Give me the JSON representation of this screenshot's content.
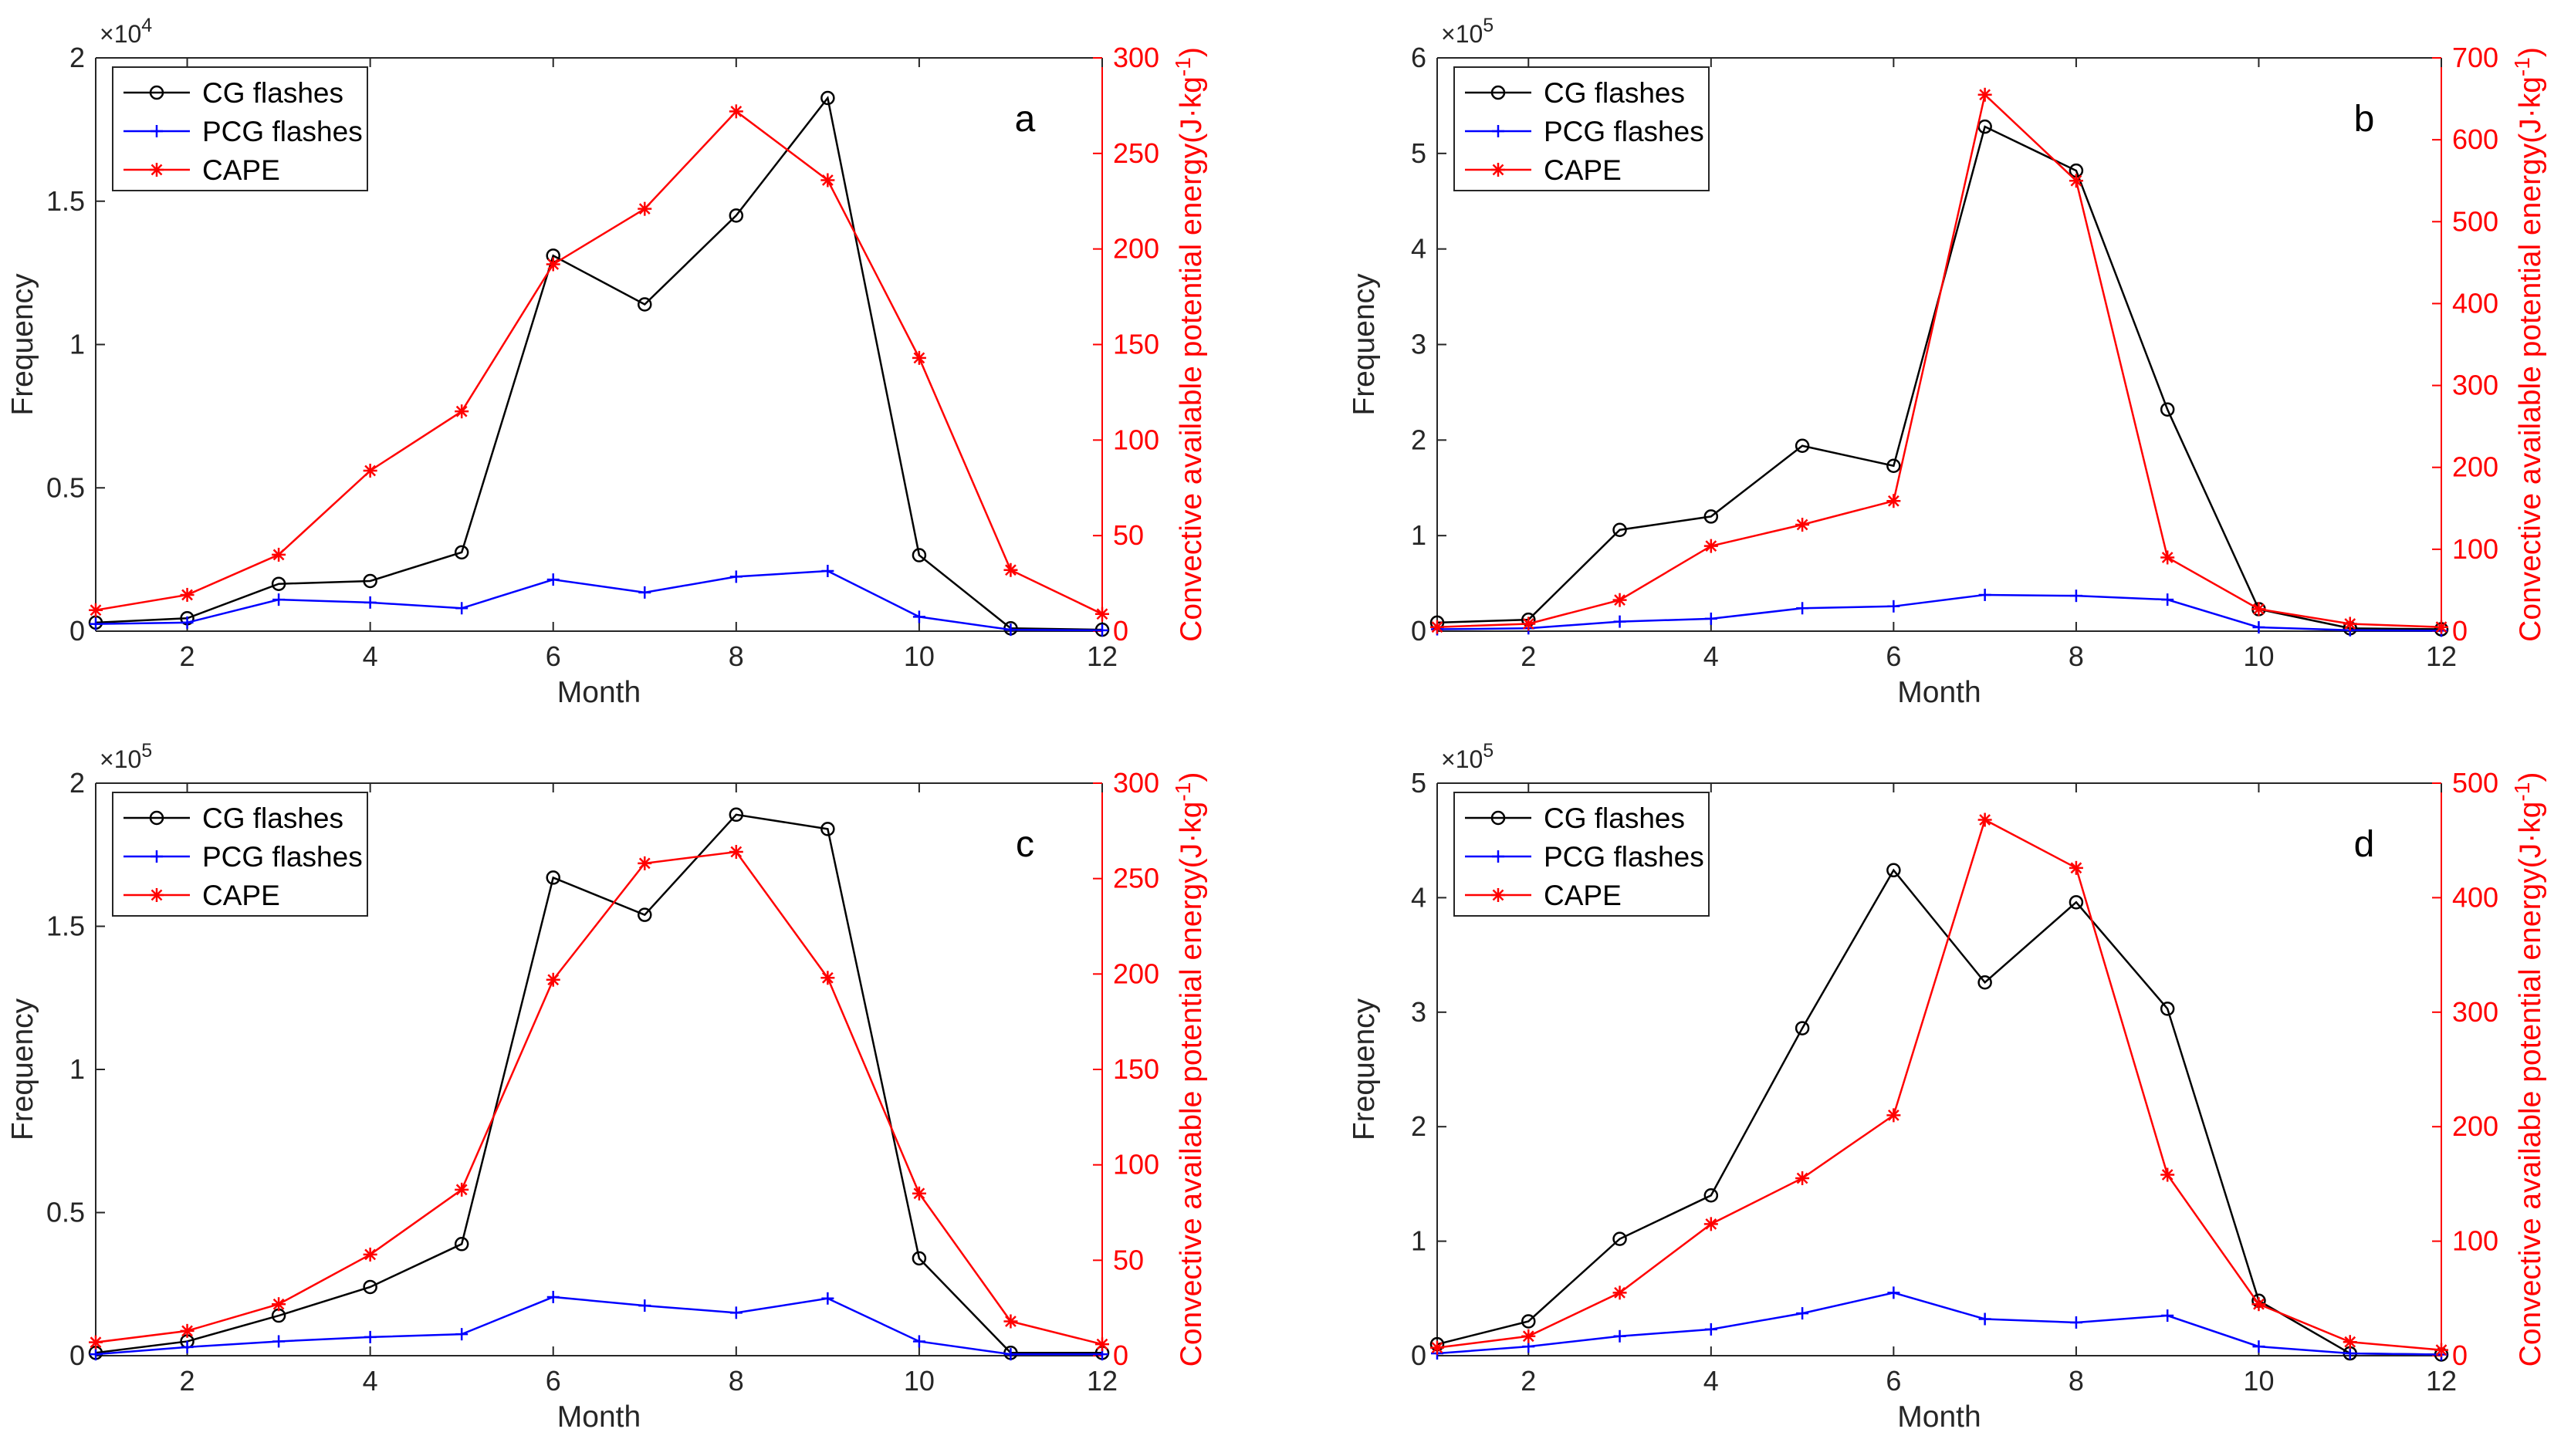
{
  "figure": {
    "months": [
      1,
      2,
      3,
      4,
      5,
      6,
      7,
      8,
      9,
      10,
      11,
      12
    ],
    "xlabel": "Month",
    "ylabel_left": "Frequency",
    "ylabel_right_main": "Convective available potential energy(J·kg",
    "ylabel_right_sup": "-1",
    "ylabel_right_close": ")",
    "legend": [
      "CG flashes",
      "PCG flashes",
      "CAPE"
    ],
    "colors": {
      "cg": "#000000",
      "pcg": "#0000ff",
      "cape": "#ff0000",
      "axis": "#262626",
      "right_axis": "#ff0000"
    }
  },
  "chart_data": [
    {
      "type": "line",
      "panel": "a",
      "x": [
        1,
        2,
        3,
        4,
        5,
        6,
        7,
        8,
        9,
        10,
        11,
        12
      ],
      "xticks": [
        2,
        4,
        6,
        8,
        10,
        12
      ],
      "xlim": [
        1,
        12
      ],
      "xlabel": "Month",
      "ylabel": "Frequency",
      "ylabel_right": "Convective available potential energy(J·kg-1)",
      "scale_base": "×10",
      "scale_exp": "4",
      "ylim_left": [
        0,
        2
      ],
      "yticks_left": [
        "0",
        "0.5",
        "1",
        "1.5",
        "2"
      ],
      "ylim_right": [
        0,
        300
      ],
      "yticks_right": [
        "0",
        "50",
        "100",
        "150",
        "200",
        "250",
        "300"
      ],
      "series": [
        {
          "name": "CG flashes",
          "axis": "left",
          "values": [
            0.03,
            0.045,
            0.165,
            0.175,
            0.275,
            1.31,
            1.14,
            1.45,
            1.86,
            0.265,
            0.01,
            0.005
          ]
        },
        {
          "name": "PCG flashes",
          "axis": "left",
          "values": [
            0.025,
            0.03,
            0.11,
            0.1,
            0.08,
            0.18,
            0.135,
            0.19,
            0.21,
            0.05,
            0.005,
            0.003
          ]
        },
        {
          "name": "CAPE",
          "axis": "right",
          "values": [
            11,
            19,
            40,
            84,
            115,
            192,
            221,
            272,
            236,
            143,
            32,
            9
          ]
        }
      ]
    },
    {
      "type": "line",
      "panel": "b",
      "x": [
        1,
        2,
        3,
        4,
        5,
        6,
        7,
        8,
        9,
        10,
        11,
        12
      ],
      "xticks": [
        2,
        4,
        6,
        8,
        10,
        12
      ],
      "xlim": [
        1,
        12
      ],
      "xlabel": "Month",
      "ylabel": "Frequency",
      "ylabel_right": "Convective available potential energy(J·kg-1)",
      "scale_base": "×10",
      "scale_exp": "5",
      "ylim_left": [
        0,
        6
      ],
      "yticks_left": [
        "0",
        "1",
        "2",
        "3",
        "4",
        "5",
        "6"
      ],
      "ylim_right": [
        0,
        700
      ],
      "yticks_right": [
        "0",
        "100",
        "200",
        "300",
        "400",
        "500",
        "600",
        "700"
      ],
      "series": [
        {
          "name": "CG flashes",
          "axis": "left",
          "values": [
            0.09,
            0.12,
            1.06,
            1.2,
            1.94,
            1.73,
            5.28,
            4.82,
            2.32,
            0.23,
            0.03,
            0.02
          ]
        },
        {
          "name": "PCG flashes",
          "axis": "left",
          "values": [
            0.02,
            0.03,
            0.1,
            0.13,
            0.24,
            0.26,
            0.38,
            0.37,
            0.33,
            0.04,
            0.01,
            0.005
          ]
        },
        {
          "name": "CAPE",
          "axis": "right",
          "values": [
            5,
            9,
            38,
            104,
            130,
            159,
            655,
            550,
            90,
            27,
            9,
            5
          ]
        }
      ]
    },
    {
      "type": "line",
      "panel": "c",
      "x": [
        1,
        2,
        3,
        4,
        5,
        6,
        7,
        8,
        9,
        10,
        11,
        12
      ],
      "xticks": [
        2,
        4,
        6,
        8,
        10,
        12
      ],
      "xlim": [
        1,
        12
      ],
      "xlabel": "Month",
      "ylabel": "Frequency",
      "ylabel_right": "Convective available potential energy(J·kg-1)",
      "scale_base": "×10",
      "scale_exp": "5",
      "ylim_left": [
        0,
        2
      ],
      "yticks_left": [
        "0",
        "0.5",
        "1",
        "1.5",
        "2"
      ],
      "ylim_right": [
        0,
        300
      ],
      "yticks_right": [
        "0",
        "50",
        "100",
        "150",
        "200",
        "250",
        "300"
      ],
      "series": [
        {
          "name": "CG flashes",
          "axis": "left",
          "values": [
            0.01,
            0.05,
            0.14,
            0.24,
            0.39,
            1.67,
            1.54,
            1.89,
            1.84,
            0.34,
            0.01,
            0.01
          ]
        },
        {
          "name": "PCG flashes",
          "axis": "left",
          "values": [
            0.005,
            0.03,
            0.05,
            0.065,
            0.075,
            0.205,
            0.175,
            0.15,
            0.2,
            0.05,
            0.005,
            0.005
          ]
        },
        {
          "name": "CAPE",
          "axis": "right",
          "values": [
            7,
            13,
            27,
            53,
            87,
            197,
            258,
            264,
            198,
            85,
            18,
            6
          ]
        }
      ]
    },
    {
      "type": "line",
      "panel": "d",
      "x": [
        1,
        2,
        3,
        4,
        5,
        6,
        7,
        8,
        9,
        10,
        11,
        12
      ],
      "xticks": [
        2,
        4,
        6,
        8,
        10,
        12
      ],
      "xlim": [
        1,
        12
      ],
      "xlabel": "Month",
      "ylabel": "Frequency",
      "ylabel_right": "Convective available potential energy(J·kg-1)",
      "scale_base": "×10",
      "scale_exp": "5",
      "ylim_left": [
        0,
        5
      ],
      "yticks_left": [
        "0",
        "1",
        "2",
        "3",
        "4",
        "5"
      ],
      "ylim_right": [
        0,
        500
      ],
      "yticks_right": [
        "0",
        "100",
        "200",
        "300",
        "400",
        "500"
      ],
      "series": [
        {
          "name": "CG flashes",
          "axis": "left",
          "values": [
            0.1,
            0.3,
            1.02,
            1.4,
            2.86,
            4.24,
            3.26,
            3.96,
            3.03,
            0.48,
            0.02,
            0.01
          ]
        },
        {
          "name": "PCG flashes",
          "axis": "left",
          "values": [
            0.02,
            0.08,
            0.17,
            0.23,
            0.37,
            0.55,
            0.32,
            0.29,
            0.35,
            0.08,
            0.02,
            0.01
          ]
        },
        {
          "name": "CAPE",
          "axis": "right",
          "values": [
            7,
            17,
            55,
            115,
            155,
            210,
            468,
            426,
            158,
            45,
            12,
            5
          ]
        }
      ]
    }
  ]
}
